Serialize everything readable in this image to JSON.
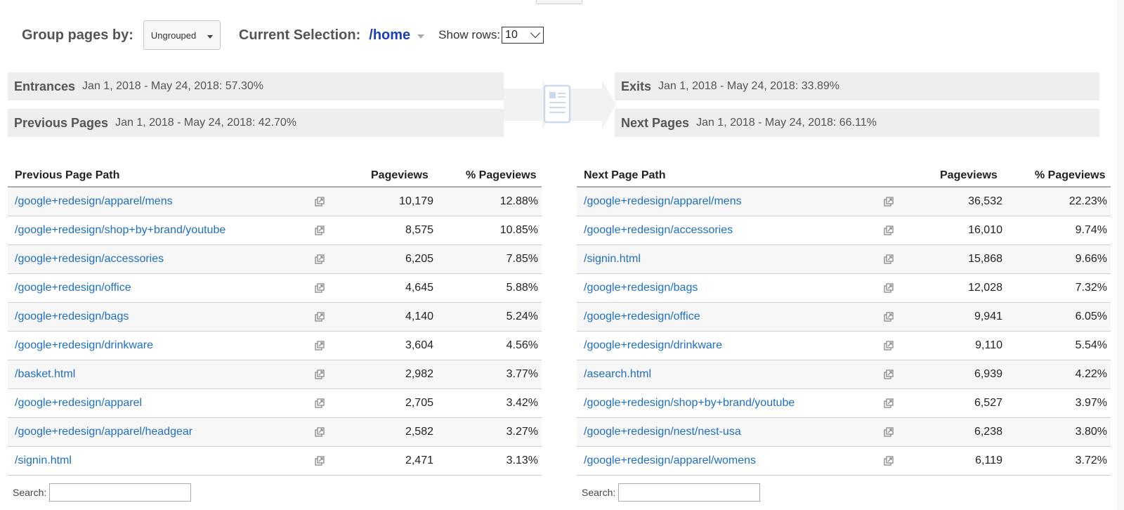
{
  "controls": {
    "group_label": "Group pages by:",
    "group_value": "Ungrouped",
    "current_label": "Current Selection:",
    "current_value": "/home",
    "rows_label": "Show rows:",
    "rows_value": "10"
  },
  "summary": {
    "entrances": {
      "name": "Entrances",
      "value": "Jan 1, 2018 - May 24, 2018: 57.30%"
    },
    "previous": {
      "name": "Previous Pages",
      "value": "Jan 1, 2018 - May 24, 2018: 42.70%"
    },
    "exits": {
      "name": "Exits",
      "value": "Jan 1, 2018 - May 24, 2018: 33.89%"
    },
    "next": {
      "name": "Next Pages",
      "value": "Jan 1, 2018 - May 24, 2018: 66.11%"
    }
  },
  "prev_table": {
    "headers": {
      "path": "Previous Page Path",
      "pageviews": "Pageviews",
      "pct": "% Pageviews"
    },
    "rows": [
      {
        "path": "/google+redesign/apparel/mens",
        "pageviews": "10,179",
        "pct": "12.88%"
      },
      {
        "path": "/google+redesign/shop+by+brand/youtube",
        "pageviews": "8,575",
        "pct": "10.85%"
      },
      {
        "path": "/google+redesign/accessories",
        "pageviews": "6,205",
        "pct": "7.85%"
      },
      {
        "path": "/google+redesign/office",
        "pageviews": "4,645",
        "pct": "5.88%"
      },
      {
        "path": "/google+redesign/bags",
        "pageviews": "4,140",
        "pct": "5.24%"
      },
      {
        "path": "/google+redesign/drinkware",
        "pageviews": "3,604",
        "pct": "4.56%"
      },
      {
        "path": "/basket.html",
        "pageviews": "2,982",
        "pct": "3.77%"
      },
      {
        "path": "/google+redesign/apparel",
        "pageviews": "2,705",
        "pct": "3.42%"
      },
      {
        "path": "/google+redesign/apparel/headgear",
        "pageviews": "2,582",
        "pct": "3.27%"
      },
      {
        "path": "/signin.html",
        "pageviews": "2,471",
        "pct": "3.13%"
      }
    ],
    "search_label": "Search:"
  },
  "next_table": {
    "headers": {
      "path": "Next Page Path",
      "pageviews": "Pageviews",
      "pct": "% Pageviews"
    },
    "rows": [
      {
        "path": "/google+redesign/apparel/mens",
        "pageviews": "36,532",
        "pct": "22.23%"
      },
      {
        "path": "/google+redesign/accessories",
        "pageviews": "16,010",
        "pct": "9.74%"
      },
      {
        "path": "/signin.html",
        "pageviews": "15,868",
        "pct": "9.66%"
      },
      {
        "path": "/google+redesign/bags",
        "pageviews": "12,028",
        "pct": "7.32%"
      },
      {
        "path": "/google+redesign/office",
        "pageviews": "9,941",
        "pct": "6.05%"
      },
      {
        "path": "/google+redesign/drinkware",
        "pageviews": "9,110",
        "pct": "5.54%"
      },
      {
        "path": "/asearch.html",
        "pageviews": "6,939",
        "pct": "4.22%"
      },
      {
        "path": "/google+redesign/shop+by+brand/youtube",
        "pageviews": "6,527",
        "pct": "3.97%"
      },
      {
        "path": "/google+redesign/nest/nest-usa",
        "pageviews": "6,238",
        "pct": "3.80%"
      },
      {
        "path": "/google+redesign/apparel/womens",
        "pageviews": "6,119",
        "pct": "3.72%"
      }
    ],
    "search_label": "Search:"
  },
  "colors": {
    "link": "#1e6fc2",
    "selection": "#1a3fb8",
    "bar_bg": "#eeeeee"
  },
  "icons": {
    "row_action": "open-in-new-icon",
    "flow": "page-document-icon"
  }
}
